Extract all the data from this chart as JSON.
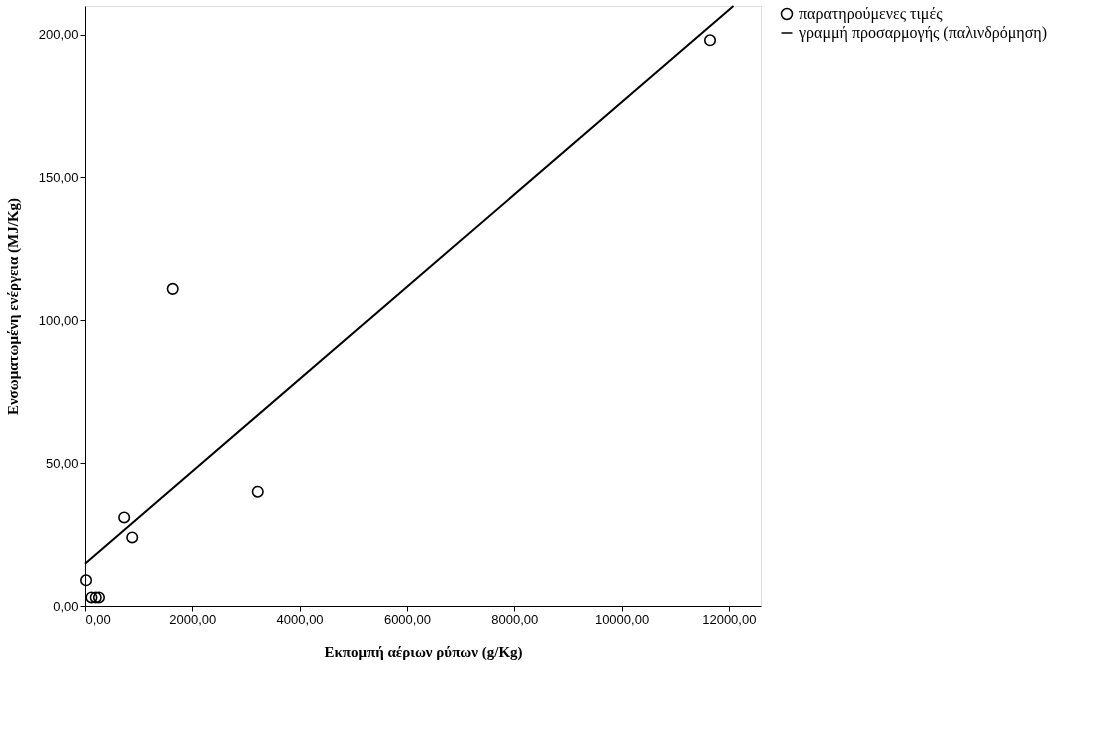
{
  "chart_data": {
    "type": "scatter",
    "xlabel": "Εκπομπή αέριων ρύπων (g/Kg)",
    "ylabel": "Ενσωματωμένη ενέργεια (MJ/Kg)",
    "xlim": [
      0,
      12600
    ],
    "ylim": [
      0,
      210
    ],
    "xticks": [
      {
        "value": 0,
        "label": "0,00"
      },
      {
        "value": 2000,
        "label": "2000,00"
      },
      {
        "value": 4000,
        "label": "4000,00"
      },
      {
        "value": 6000,
        "label": "6000,00"
      },
      {
        "value": 8000,
        "label": "8000,00"
      },
      {
        "value": 10000,
        "label": "10000,00"
      },
      {
        "value": 12000,
        "label": "12000,00"
      }
    ],
    "yticks": [
      {
        "value": 0,
        "label": "0,00"
      },
      {
        "value": 50,
        "label": "50,00"
      },
      {
        "value": 100,
        "label": "100,00"
      },
      {
        "value": 150,
        "label": "150,00"
      },
      {
        "value": 200,
        "label": "200,00"
      }
    ],
    "grid": false,
    "legend": "top right",
    "series": [
      {
        "name": "παρατηρούμενες τιμές",
        "marker": "circle",
        "color": "#000000",
        "x": [
          11650,
          1635,
          3220,
          730,
          880,
          20,
          120,
          200,
          260
        ],
        "values": [
          198,
          111,
          40,
          31,
          24,
          9,
          3,
          3,
          3
        ]
      },
      {
        "name": "γραμμή προσαρμογής (παλινδρόμηση)",
        "type": "line",
        "line_style": "solid",
        "color": "#000000",
        "x": [
          0,
          12087
        ],
        "values": [
          14.8,
          210
        ]
      }
    ]
  }
}
